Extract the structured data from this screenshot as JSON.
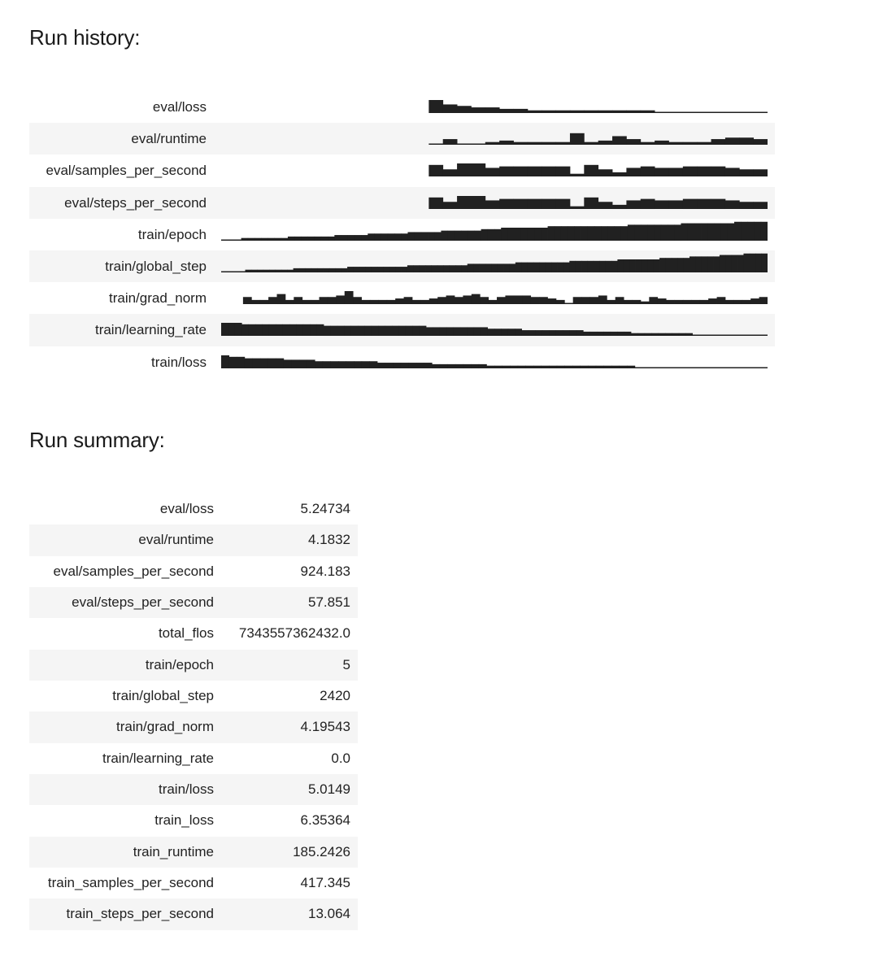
{
  "history": {
    "heading": "Run history:",
    "bar_color": "#212121",
    "rows": [
      {
        "label": "eval/loss",
        "start": 0.38,
        "values": [
          8,
          5,
          4,
          3,
          3,
          2,
          2,
          1,
          1,
          1,
          1,
          1,
          1,
          1,
          1,
          1,
          0,
          0,
          0,
          0,
          0,
          0,
          0,
          0
        ]
      },
      {
        "label": "eval/runtime",
        "start": 0.38,
        "values": [
          0,
          3,
          0,
          0,
          1,
          2,
          1,
          1,
          1,
          1,
          7,
          1,
          2,
          5,
          3,
          1,
          2,
          1,
          1,
          1,
          3,
          4,
          4,
          3
        ]
      },
      {
        "label": "eval/samples_per_second",
        "start": 0.38,
        "values": [
          7,
          4,
          8,
          8,
          5,
          6,
          6,
          6,
          6,
          6,
          1,
          7,
          4,
          2,
          5,
          6,
          5,
          5,
          6,
          6,
          6,
          5,
          4,
          4
        ]
      },
      {
        "label": "eval/steps_per_second",
        "start": 0.38,
        "values": [
          7,
          4,
          8,
          8,
          5,
          6,
          6,
          6,
          6,
          6,
          1,
          7,
          4,
          2,
          5,
          6,
          5,
          5,
          6,
          6,
          6,
          5,
          4,
          4
        ]
      },
      {
        "label": "train/epoch",
        "start": 0.0,
        "values": [
          0,
          0,
          0,
          1,
          1,
          1,
          1,
          1,
          1,
          1,
          2,
          2,
          2,
          2,
          2,
          2,
          2,
          3,
          3,
          3,
          3,
          3,
          4,
          4,
          4,
          4,
          4,
          4,
          5,
          5,
          5,
          5,
          5,
          6,
          6,
          6,
          6,
          6,
          6,
          7,
          7,
          7,
          8,
          8,
          8,
          8,
          8,
          8,
          8,
          9,
          9,
          9,
          9,
          9,
          9,
          9,
          9,
          9,
          9,
          9,
          9,
          10,
          10,
          10,
          10,
          10,
          10,
          10,
          10,
          11,
          11,
          11,
          11,
          11,
          11,
          11,
          11,
          12,
          12,
          12,
          12,
          12
        ]
      },
      {
        "label": "train/global_step",
        "start": 0.0,
        "values": [
          0,
          0,
          0,
          0,
          1,
          1,
          1,
          1,
          1,
          1,
          1,
          1,
          2,
          2,
          2,
          2,
          2,
          2,
          2,
          2,
          2,
          3,
          3,
          3,
          3,
          3,
          3,
          3,
          3,
          3,
          3,
          4,
          4,
          4,
          4,
          4,
          4,
          4,
          4,
          4,
          4,
          5,
          5,
          5,
          5,
          5,
          5,
          5,
          5,
          6,
          6,
          6,
          6,
          6,
          6,
          6,
          6,
          6,
          7,
          7,
          7,
          7,
          7,
          7,
          7,
          7,
          8,
          8,
          8,
          8,
          8,
          8,
          8,
          9,
          9,
          9,
          9,
          9,
          10,
          10,
          10,
          10,
          10,
          11,
          11,
          11,
          11,
          12,
          12,
          12,
          12
        ]
      },
      {
        "label": "train/grad_norm",
        "start": 0.04,
        "values": [
          4,
          2,
          2,
          4,
          6,
          2,
          4,
          2,
          2,
          4,
          4,
          5,
          8,
          4,
          2,
          2,
          2,
          2,
          3,
          4,
          2,
          2,
          3,
          4,
          5,
          4,
          5,
          6,
          4,
          2,
          4,
          5,
          5,
          5,
          4,
          4,
          3,
          2,
          0,
          4,
          4,
          4,
          5,
          2,
          4,
          2,
          2,
          1,
          4,
          3,
          2,
          2,
          2,
          2,
          2,
          3,
          4,
          2,
          2,
          2,
          3,
          4
        ]
      },
      {
        "label": "train/learning_rate",
        "start": 0.0,
        "values": [
          8,
          8,
          8,
          7,
          7,
          7,
          7,
          7,
          7,
          7,
          7,
          7,
          7,
          7,
          7,
          6,
          6,
          6,
          6,
          6,
          6,
          6,
          6,
          6,
          6,
          6,
          6,
          6,
          6,
          6,
          5,
          5,
          5,
          5,
          5,
          5,
          5,
          5,
          5,
          4,
          4,
          4,
          4,
          4,
          3,
          3,
          3,
          3,
          3,
          3,
          3,
          3,
          3,
          2,
          2,
          2,
          2,
          2,
          2,
          2,
          1,
          1,
          1,
          1,
          1,
          1,
          1,
          1,
          1,
          0,
          0,
          0,
          0,
          0,
          0,
          0,
          0,
          0,
          0,
          0
        ]
      },
      {
        "label": "train/loss",
        "start": 0.0,
        "values": [
          8,
          7,
          7,
          6,
          6,
          6,
          6,
          6,
          5,
          5,
          5,
          5,
          4,
          4,
          4,
          4,
          4,
          4,
          4,
          4,
          3,
          3,
          3,
          3,
          3,
          3,
          3,
          2,
          2,
          2,
          2,
          2,
          2,
          2,
          1,
          1,
          1,
          1,
          1,
          1,
          1,
          1,
          1,
          1,
          1,
          1,
          1,
          1,
          1,
          1,
          1,
          1,
          1,
          0,
          0,
          0,
          0,
          0,
          0,
          0,
          0,
          0,
          0,
          0,
          0,
          0,
          0,
          0,
          0,
          0
        ]
      }
    ]
  },
  "summary": {
    "heading": "Run summary:",
    "rows": [
      {
        "label": "eval/loss",
        "value": "5.24734"
      },
      {
        "label": "eval/runtime",
        "value": "4.1832"
      },
      {
        "label": "eval/samples_per_second",
        "value": "924.183"
      },
      {
        "label": "eval/steps_per_second",
        "value": "57.851"
      },
      {
        "label": "total_flos",
        "value": "7343557362432.0"
      },
      {
        "label": "train/epoch",
        "value": "5"
      },
      {
        "label": "train/global_step",
        "value": "2420"
      },
      {
        "label": "train/grad_norm",
        "value": "4.19543"
      },
      {
        "label": "train/learning_rate",
        "value": "0.0"
      },
      {
        "label": "train/loss",
        "value": "5.0149"
      },
      {
        "label": "train_loss",
        "value": "6.35364"
      },
      {
        "label": "train_runtime",
        "value": "185.2426"
      },
      {
        "label": "train_samples_per_second",
        "value": "417.345"
      },
      {
        "label": "train_steps_per_second",
        "value": "13.064"
      }
    ]
  }
}
